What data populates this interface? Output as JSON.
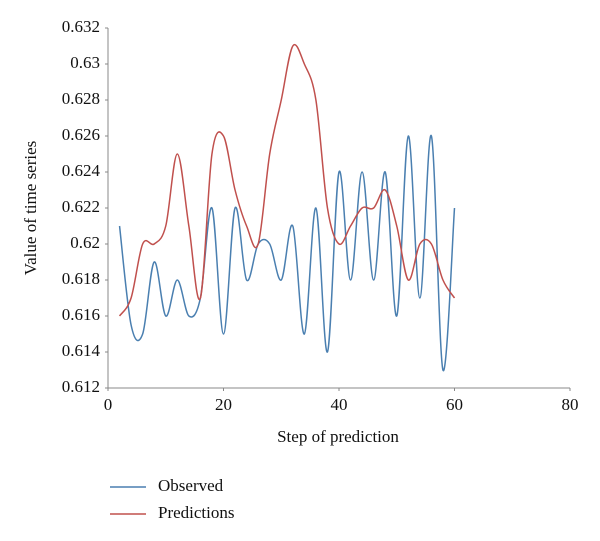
{
  "chart_data": {
    "type": "line",
    "x_label": "Step of prediction",
    "y_label": "Value of time series",
    "x": [
      2,
      4,
      6,
      8,
      10,
      12,
      14,
      16,
      18,
      20,
      22,
      24,
      26,
      28,
      30,
      32,
      34,
      36,
      38,
      40,
      42,
      44,
      46,
      48,
      50,
      52,
      54,
      56,
      58,
      60
    ],
    "series": [
      {
        "name": "Observed",
        "color": "#4a7fb0",
        "values": [
          0.621,
          0.6155,
          0.615,
          0.619,
          0.616,
          0.618,
          0.616,
          0.617,
          0.622,
          0.615,
          0.622,
          0.618,
          0.62,
          0.62,
          0.618,
          0.621,
          0.615,
          0.622,
          0.614,
          0.624,
          0.618,
          0.624,
          0.618,
          0.624,
          0.616,
          0.626,
          0.617,
          0.626,
          0.613,
          0.622
        ]
      },
      {
        "name": "Predictions",
        "color": "#c0504d",
        "values": [
          0.616,
          0.617,
          0.62,
          0.62,
          0.621,
          0.625,
          0.621,
          0.617,
          0.625,
          0.626,
          0.623,
          0.621,
          0.62,
          0.625,
          0.628,
          0.631,
          0.63,
          0.628,
          0.622,
          0.62,
          0.621,
          0.622,
          0.622,
          0.623,
          0.621,
          0.618,
          0.62,
          0.62,
          0.618,
          0.617
        ]
      }
    ],
    "xlim": [
      0,
      80
    ],
    "xticks": [
      0,
      20,
      40,
      60,
      80
    ],
    "ylim": [
      0.612,
      0.632
    ],
    "yticks": [
      0.612,
      0.614,
      0.616,
      0.618,
      0.62,
      0.622,
      0.624,
      0.626,
      0.628,
      0.63,
      0.632
    ],
    "grid": false,
    "legend": "bottom"
  }
}
